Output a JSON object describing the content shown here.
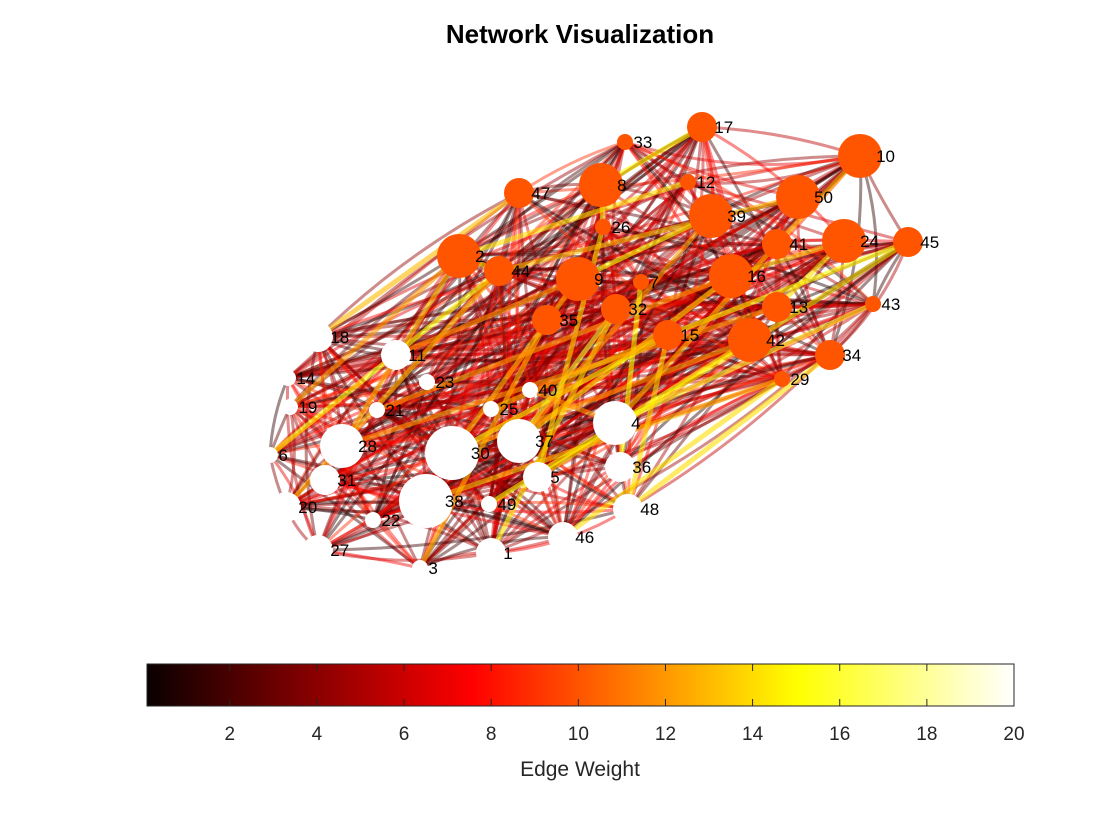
{
  "title": "Network Visualization",
  "colorbar": {
    "label": "Edge Weight",
    "range": [
      0.1,
      20
    ],
    "ticks": [
      2,
      4,
      6,
      8,
      10,
      12,
      14,
      16,
      18,
      20
    ],
    "tick_labels": [
      "2",
      "4",
      "6",
      "8",
      "10",
      "12",
      "14",
      "16",
      "18",
      "20"
    ],
    "colormap": "hot"
  },
  "node_colors": {
    "group_a": "#ff5500",
    "group_b": "#ffffff"
  },
  "nodes": [
    {
      "id": "1",
      "group": "b",
      "size": 2
    },
    {
      "id": "2",
      "group": "a",
      "size": 3
    },
    {
      "id": "3",
      "group": "b",
      "size": 1
    },
    {
      "id": "4",
      "group": "b",
      "size": 3
    },
    {
      "id": "5",
      "group": "b",
      "size": 2
    },
    {
      "id": "6",
      "group": "b",
      "size": 1
    },
    {
      "id": "7",
      "group": "a",
      "size": 1
    },
    {
      "id": "8",
      "group": "a",
      "size": 3
    },
    {
      "id": "9",
      "group": "a",
      "size": 3
    },
    {
      "id": "10",
      "group": "a",
      "size": 3
    },
    {
      "id": "11",
      "group": "b",
      "size": 2
    },
    {
      "id": "12",
      "group": "a",
      "size": 1
    },
    {
      "id": "13",
      "group": "a",
      "size": 2
    },
    {
      "id": "14",
      "group": "b",
      "size": 1
    },
    {
      "id": "15",
      "group": "a",
      "size": 2
    },
    {
      "id": "16",
      "group": "a",
      "size": 3
    },
    {
      "id": "17",
      "group": "a",
      "size": 2
    },
    {
      "id": "18",
      "group": "b",
      "size": 2
    },
    {
      "id": "19",
      "group": "b",
      "size": 1
    },
    {
      "id": "20",
      "group": "b",
      "size": 2
    },
    {
      "id": "21",
      "group": "b",
      "size": 1
    },
    {
      "id": "22",
      "group": "b",
      "size": 1
    },
    {
      "id": "23",
      "group": "b",
      "size": 1
    },
    {
      "id": "24",
      "group": "a",
      "size": 3
    },
    {
      "id": "25",
      "group": "b",
      "size": 1
    },
    {
      "id": "26",
      "group": "a",
      "size": 1
    },
    {
      "id": "27",
      "group": "b",
      "size": 2
    },
    {
      "id": "28",
      "group": "b",
      "size": 3
    },
    {
      "id": "29",
      "group": "a",
      "size": 1
    },
    {
      "id": "30",
      "group": "b",
      "size": 4
    },
    {
      "id": "31",
      "group": "b",
      "size": 2
    },
    {
      "id": "32",
      "group": "a",
      "size": 2
    },
    {
      "id": "33",
      "group": "a",
      "size": 1
    },
    {
      "id": "34",
      "group": "a",
      "size": 2
    },
    {
      "id": "35",
      "group": "a",
      "size": 2
    },
    {
      "id": "36",
      "group": "b",
      "size": 2
    },
    {
      "id": "37",
      "group": "b",
      "size": 3
    },
    {
      "id": "38",
      "group": "b",
      "size": 4
    },
    {
      "id": "39",
      "group": "a",
      "size": 3
    },
    {
      "id": "40",
      "group": "b",
      "size": 1
    },
    {
      "id": "41",
      "group": "a",
      "size": 2
    },
    {
      "id": "42",
      "group": "a",
      "size": 3
    },
    {
      "id": "43",
      "group": "a",
      "size": 1
    },
    {
      "id": "44",
      "group": "a",
      "size": 2
    },
    {
      "id": "45",
      "group": "a",
      "size": 2
    },
    {
      "id": "46",
      "group": "b",
      "size": 2
    },
    {
      "id": "47",
      "group": "a",
      "size": 2
    },
    {
      "id": "48",
      "group": "b",
      "size": 2
    },
    {
      "id": "49",
      "group": "b",
      "size": 1
    },
    {
      "id": "50",
      "group": "a",
      "size": 3
    }
  ],
  "highlight_edges": [
    {
      "source": "2",
      "target": "44",
      "weight": 14
    },
    {
      "source": "2",
      "target": "28",
      "weight": 13
    },
    {
      "source": "8",
      "target": "17",
      "weight": 15
    },
    {
      "source": "8",
      "target": "26",
      "weight": 14
    },
    {
      "source": "9",
      "target": "30",
      "weight": 13
    },
    {
      "source": "9",
      "target": "39",
      "weight": 15
    },
    {
      "source": "16",
      "target": "37",
      "weight": 14
    },
    {
      "source": "16",
      "target": "24",
      "weight": 13
    },
    {
      "source": "42",
      "target": "30",
      "weight": 12
    },
    {
      "source": "45",
      "target": "15",
      "weight": 15
    },
    {
      "source": "45",
      "target": "5",
      "weight": 14
    },
    {
      "source": "43",
      "target": "4",
      "weight": 16
    },
    {
      "source": "29",
      "target": "38",
      "weight": 13
    },
    {
      "source": "29",
      "target": "46",
      "weight": 14
    },
    {
      "source": "15",
      "target": "30",
      "weight": 15
    },
    {
      "source": "15",
      "target": "48",
      "weight": 14
    },
    {
      "source": "35",
      "target": "3",
      "weight": 13
    },
    {
      "source": "32",
      "target": "37",
      "weight": 16
    },
    {
      "source": "32",
      "target": "1",
      "weight": 14
    },
    {
      "source": "44",
      "target": "6",
      "weight": 15
    },
    {
      "source": "44",
      "target": "20",
      "weight": 13
    },
    {
      "source": "2",
      "target": "19",
      "weight": 12
    },
    {
      "source": "24",
      "target": "13",
      "weight": 14
    },
    {
      "source": "10",
      "target": "41",
      "weight": 13
    },
    {
      "source": "39",
      "target": "37",
      "weight": 12
    },
    {
      "source": "26",
      "target": "5",
      "weight": 14
    },
    {
      "source": "7",
      "target": "36",
      "weight": 15
    },
    {
      "source": "41",
      "target": "4",
      "weight": 13
    },
    {
      "source": "34",
      "target": "48",
      "weight": 14
    },
    {
      "source": "9",
      "target": "11",
      "weight": 12
    },
    {
      "source": "47",
      "target": "18",
      "weight": 13
    },
    {
      "source": "13",
      "target": "28",
      "weight": 12
    },
    {
      "source": "50",
      "target": "44",
      "weight": 13
    },
    {
      "source": "12",
      "target": "2",
      "weight": 14
    },
    {
      "source": "16",
      "target": "21",
      "weight": 12
    },
    {
      "source": "42",
      "target": "49",
      "weight": 15
    },
    {
      "source": "40",
      "target": "4",
      "weight": 12
    },
    {
      "source": "25",
      "target": "15",
      "weight": 13
    }
  ]
}
